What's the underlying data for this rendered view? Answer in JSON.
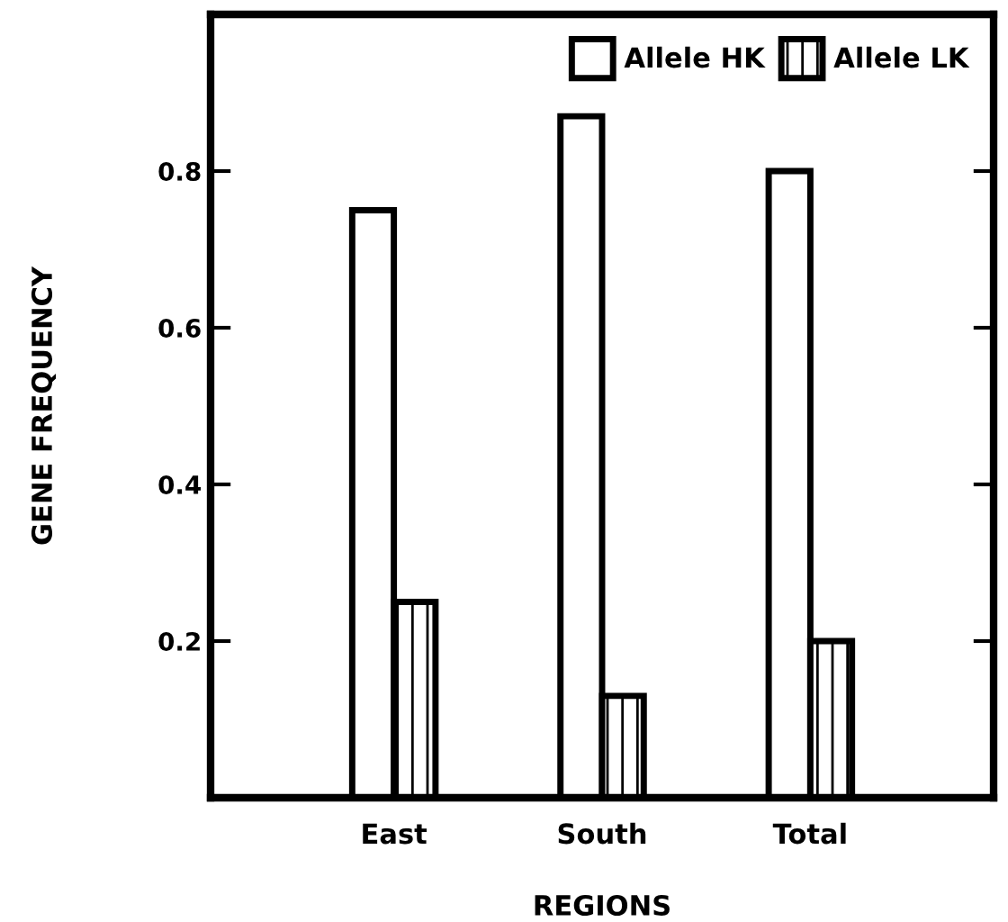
{
  "chart_data": {
    "type": "bar",
    "xlabel": "REGIONS",
    "ylabel": "GENE FREQUENCY",
    "categories": [
      "East",
      "South",
      "Total"
    ],
    "series": [
      {
        "name": "Allele HK",
        "color": "#ffffff",
        "values": [
          0.75,
          0.87,
          0.8
        ]
      },
      {
        "name": "Allele LK",
        "color": "#000000",
        "values": [
          0.25,
          0.13,
          0.2
        ]
      }
    ],
    "ylim": [
      0,
      1
    ],
    "yticks": [
      0.2,
      0.4,
      0.6,
      0.8
    ],
    "grid": false,
    "legend": "top right"
  }
}
